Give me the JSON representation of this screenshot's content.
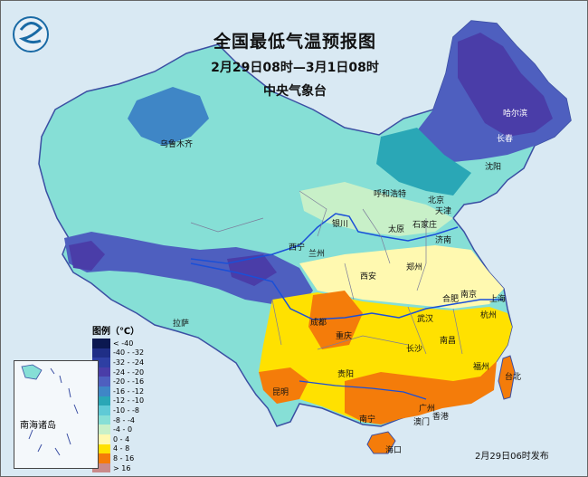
{
  "title": "全国最低气温预报图",
  "period": "2月29日08时—3月1日08时",
  "agency": "中央气象台",
  "issue_time": "2月29日06时发布",
  "inset_label": "南海诸岛",
  "legend": {
    "title": "图例（℃）",
    "items": [
      {
        "label": "< -40",
        "color": "#0b1850"
      },
      {
        "label": "-40 - -32",
        "color": "#1f2e86"
      },
      {
        "label": "-32 - -24",
        "color": "#2e3fa3"
      },
      {
        "label": "-24 - -20",
        "color": "#4a3da8"
      },
      {
        "label": "-20 - -16",
        "color": "#4e5fbf"
      },
      {
        "label": "-16 - -12",
        "color": "#3f86c6"
      },
      {
        "label": "-12 - -10",
        "color": "#2aa7b6"
      },
      {
        "label": "-10 - -8",
        "color": "#5fcad6"
      },
      {
        "label": "-8 - -4",
        "color": "#86dfd6"
      },
      {
        "label": "-4 - 0",
        "color": "#c8f0c8"
      },
      {
        "label": "0 - 4",
        "color": "#fff9b0"
      },
      {
        "label": "4 - 8",
        "color": "#ffe100"
      },
      {
        "label": "8 - 16",
        "color": "#f47c0a"
      },
      {
        "label": "> 16",
        "color": "#c98a8a"
      }
    ]
  },
  "cities": [
    {
      "name": "哈尔滨",
      "color": "#ffffff"
    },
    {
      "name": "长春",
      "color": "#ffffff"
    },
    {
      "name": "沈阳",
      "color": "#111111"
    },
    {
      "name": "乌鲁木齐",
      "color": "#111111"
    },
    {
      "name": "呼和浩特",
      "color": "#111111"
    },
    {
      "name": "北京",
      "color": "#111111"
    },
    {
      "name": "天津",
      "color": "#111111"
    },
    {
      "name": "银川",
      "color": "#111111"
    },
    {
      "name": "太原",
      "color": "#111111"
    },
    {
      "name": "石家庄",
      "color": "#111111"
    },
    {
      "name": "济南",
      "color": "#111111"
    },
    {
      "name": "西宁",
      "color": "#111111"
    },
    {
      "name": "兰州",
      "color": "#111111"
    },
    {
      "name": "郑州",
      "color": "#111111"
    },
    {
      "name": "西安",
      "color": "#111111"
    },
    {
      "name": "合肥",
      "color": "#111111"
    },
    {
      "name": "南京",
      "color": "#111111"
    },
    {
      "name": "上海",
      "color": "#111111"
    },
    {
      "name": "拉萨",
      "color": "#111111"
    },
    {
      "name": "成都",
      "color": "#111111"
    },
    {
      "name": "武汉",
      "color": "#111111"
    },
    {
      "name": "杭州",
      "color": "#111111"
    },
    {
      "name": "重庆",
      "color": "#111111"
    },
    {
      "name": "长沙",
      "color": "#111111"
    },
    {
      "name": "南昌",
      "color": "#111111"
    },
    {
      "name": "福州",
      "color": "#111111"
    },
    {
      "name": "贵阳",
      "color": "#111111"
    },
    {
      "name": "台北",
      "color": "#111111"
    },
    {
      "name": "昆明",
      "color": "#111111"
    },
    {
      "name": "南宁",
      "color": "#111111"
    },
    {
      "name": "广州",
      "color": "#111111"
    },
    {
      "name": "香港",
      "color": "#111111"
    },
    {
      "name": "澳门",
      "color": "#111111"
    },
    {
      "name": "海口",
      "color": "#111111"
    }
  ]
}
